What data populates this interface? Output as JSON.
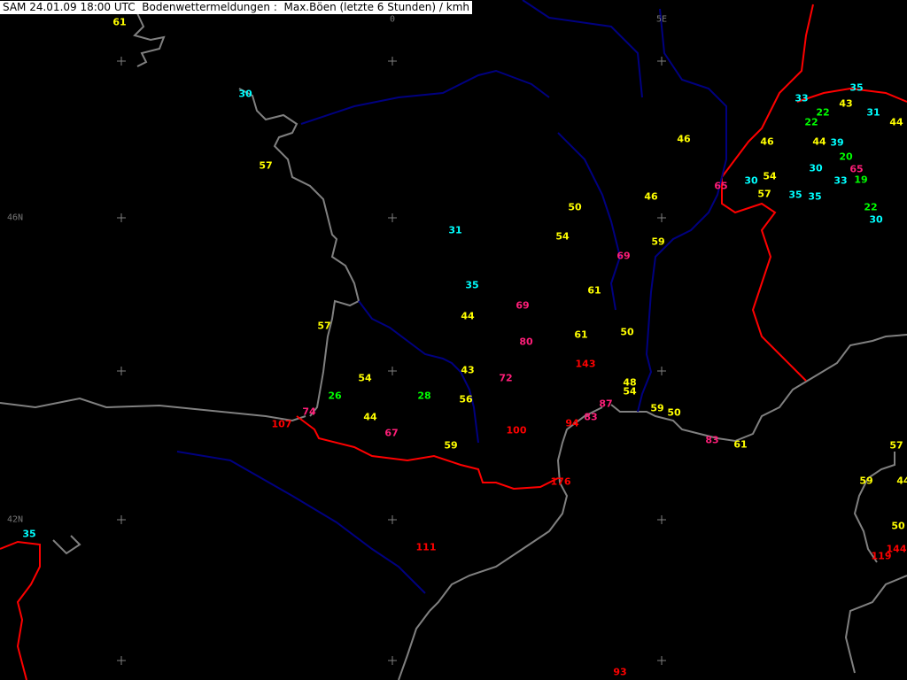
{
  "header": {
    "title": "SAM 24.01.09 18:00 UTC  Bodenwettermeldungen :  Max.Böen (letzte 6 Stunden) / kmh"
  },
  "grid_labels": [
    "0",
    "5E",
    "46N",
    "42N"
  ],
  "colors": {
    "background": "#000000",
    "coast": "#808080",
    "border": "#ff0000",
    "river": "#000080",
    "grid": "#808080",
    "lt30": "#00ffff",
    "lt30_low": "#00ff00",
    "lt60": "#ffff00",
    "lt90": "#ff1e78",
    "ge90": "#ff0000"
  },
  "stations": [
    {
      "v": "61",
      "c": "lt60"
    },
    {
      "v": "30",
      "c": "lt30"
    },
    {
      "v": "57",
      "c": "lt60"
    },
    {
      "v": "31",
      "c": "lt30"
    },
    {
      "v": "35",
      "c": "lt30"
    },
    {
      "v": "44",
      "c": "lt60"
    },
    {
      "v": "69",
      "c": "lt90"
    },
    {
      "v": "80",
      "c": "lt90"
    },
    {
      "v": "57",
      "c": "lt60"
    },
    {
      "v": "43",
      "c": "lt60"
    },
    {
      "v": "72",
      "c": "lt90"
    },
    {
      "v": "54",
      "c": "lt60"
    },
    {
      "v": "26",
      "c": "lt30_low"
    },
    {
      "v": "28",
      "c": "lt30_low"
    },
    {
      "v": "56",
      "c": "lt60"
    },
    {
      "v": "74",
      "c": "lt90"
    },
    {
      "v": "107",
      "c": "ge90"
    },
    {
      "v": "44",
      "c": "lt60"
    },
    {
      "v": "67",
      "c": "lt90"
    },
    {
      "v": "59",
      "c": "lt60"
    },
    {
      "v": "100",
      "c": "ge90"
    },
    {
      "v": "50",
      "c": "lt60"
    },
    {
      "v": "54",
      "c": "lt60"
    },
    {
      "v": "69",
      "c": "lt90"
    },
    {
      "v": "61",
      "c": "lt60"
    },
    {
      "v": "61",
      "c": "lt60"
    },
    {
      "v": "50",
      "c": "lt60"
    },
    {
      "v": "143",
      "c": "ge90"
    },
    {
      "v": "48",
      "c": "lt60"
    },
    {
      "v": "54",
      "c": "lt60"
    },
    {
      "v": "87",
      "c": "lt90"
    },
    {
      "v": "83",
      "c": "lt90"
    },
    {
      "v": "94",
      "c": "ge90"
    },
    {
      "v": "59",
      "c": "lt60"
    },
    {
      "v": "50",
      "c": "lt60"
    },
    {
      "v": "83",
      "c": "lt90"
    },
    {
      "v": "61",
      "c": "lt60"
    },
    {
      "v": "176",
      "c": "ge90"
    },
    {
      "v": "111",
      "c": "ge90"
    },
    {
      "v": "93",
      "c": "ge90"
    },
    {
      "v": "46",
      "c": "lt60"
    },
    {
      "v": "46",
      "c": "lt60"
    },
    {
      "v": "59",
      "c": "lt60"
    },
    {
      "v": "33",
      "c": "lt30"
    },
    {
      "v": "35",
      "c": "lt30"
    },
    {
      "v": "43",
      "c": "lt60"
    },
    {
      "v": "31",
      "c": "lt30"
    },
    {
      "v": "22",
      "c": "lt30_low"
    },
    {
      "v": "22",
      "c": "lt30_low"
    },
    {
      "v": "44",
      "c": "lt60"
    },
    {
      "v": "46",
      "c": "lt60"
    },
    {
      "v": "44",
      "c": "lt60"
    },
    {
      "v": "39",
      "c": "lt30"
    },
    {
      "v": "20",
      "c": "lt30_low"
    },
    {
      "v": "65",
      "c": "lt90"
    },
    {
      "v": "30",
      "c": "lt30"
    },
    {
      "v": "19",
      "c": "lt30_low"
    },
    {
      "v": "33",
      "c": "lt30"
    },
    {
      "v": "65",
      "c": "lt90"
    },
    {
      "v": "30",
      "c": "lt30"
    },
    {
      "v": "54",
      "c": "lt60"
    },
    {
      "v": "57",
      "c": "lt60"
    },
    {
      "v": "35",
      "c": "lt30"
    },
    {
      "v": "35",
      "c": "lt30"
    },
    {
      "v": "22",
      "c": "lt30_low"
    },
    {
      "v": "30",
      "c": "lt30"
    },
    {
      "v": "57",
      "c": "lt60"
    },
    {
      "v": "59",
      "c": "lt60"
    },
    {
      "v": "44",
      "c": "lt60"
    },
    {
      "v": "50",
      "c": "lt60"
    },
    {
      "v": "144",
      "c": "ge90"
    },
    {
      "v": "119",
      "c": "ge90"
    },
    {
      "v": "35",
      "c": "lt30"
    }
  ]
}
